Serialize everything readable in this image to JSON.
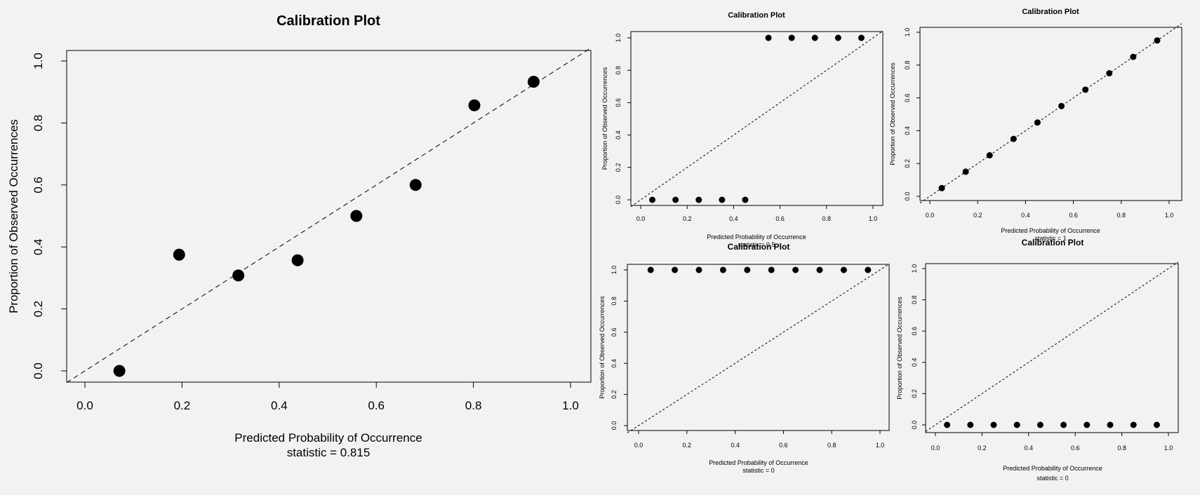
{
  "chart_data": [
    {
      "type": "scatter",
      "title": "Calibration Plot",
      "xlabel": "Predicted Probability of Occurrence",
      "ylabel": "Proportion of Observed Occurrences",
      "subtitle": "statistic = 0.815",
      "xlim": [
        0,
        1
      ],
      "ylim": [
        0,
        1
      ],
      "xticks": [
        "0.0",
        "0.2",
        "0.4",
        "0.6",
        "0.8",
        "1.0"
      ],
      "yticks": [
        "0.0",
        "0.2",
        "0.4",
        "0.6",
        "0.8",
        "1.0"
      ],
      "reference_line": "y = x (dashed)",
      "grid": false,
      "points": [
        {
          "x": 0.071,
          "y": 0.0
        },
        {
          "x": 0.194,
          "y": 0.375
        },
        {
          "x": 0.316,
          "y": 0.308
        },
        {
          "x": 0.438,
          "y": 0.357
        },
        {
          "x": 0.559,
          "y": 0.5
        },
        {
          "x": 0.681,
          "y": 0.6
        },
        {
          "x": 0.802,
          "y": 0.857
        },
        {
          "x": 0.924,
          "y": 0.933
        }
      ]
    },
    {
      "type": "scatter",
      "title": "Calibration Plot",
      "xlabel": "Predicted Probability of Occurrence",
      "ylabel": "Proportion of Observed Occurrences",
      "subtitle": "statistic = 0.5",
      "xlim": [
        0,
        1
      ],
      "ylim": [
        0,
        1
      ],
      "xticks": [
        "0.0",
        "0.2",
        "0.4",
        "0.6",
        "0.8",
        "1.0"
      ],
      "yticks": [
        "0.0",
        "0.2",
        "0.4",
        "0.6",
        "0.8",
        "1.0"
      ],
      "reference_line": "y = x (dashed)",
      "grid": false,
      "points": [
        {
          "x": 0.05,
          "y": 0
        },
        {
          "x": 0.15,
          "y": 0
        },
        {
          "x": 0.25,
          "y": 0
        },
        {
          "x": 0.35,
          "y": 0
        },
        {
          "x": 0.45,
          "y": 0
        },
        {
          "x": 0.55,
          "y": 1
        },
        {
          "x": 0.65,
          "y": 1
        },
        {
          "x": 0.75,
          "y": 1
        },
        {
          "x": 0.85,
          "y": 1
        },
        {
          "x": 0.95,
          "y": 1
        }
      ]
    },
    {
      "type": "scatter",
      "title": "Calibration Plot",
      "xlabel": "Predicted Probability of Occurrence",
      "ylabel": "Proportion of Observed Occurrences",
      "subtitle": "statistic = 1",
      "xlim": [
        0,
        1
      ],
      "ylim": [
        0,
        1
      ],
      "xticks": [
        "0.0",
        "0.2",
        "0.4",
        "0.6",
        "0.8",
        "1.0"
      ],
      "yticks": [
        "0.0",
        "0.2",
        "0.4",
        "0.6",
        "0.8",
        "1.0"
      ],
      "reference_line": "y = x (dashed)",
      "grid": false,
      "points": [
        {
          "x": 0.05,
          "y": 0.05
        },
        {
          "x": 0.15,
          "y": 0.15
        },
        {
          "x": 0.25,
          "y": 0.25
        },
        {
          "x": 0.35,
          "y": 0.35
        },
        {
          "x": 0.45,
          "y": 0.45
        },
        {
          "x": 0.55,
          "y": 0.55
        },
        {
          "x": 0.65,
          "y": 0.65
        },
        {
          "x": 0.75,
          "y": 0.75
        },
        {
          "x": 0.85,
          "y": 0.85
        },
        {
          "x": 0.95,
          "y": 0.95
        }
      ]
    },
    {
      "type": "scatter",
      "title": "Calibration Plot",
      "xlabel": "Predicted Probability of Occurrence",
      "ylabel": "Proportion of Observed Occurrences",
      "subtitle": "statistic = 0",
      "xlim": [
        0,
        1
      ],
      "ylim": [
        0,
        1
      ],
      "xticks": [
        "0.0",
        "0.2",
        "0.4",
        "0.6",
        "0.8",
        "1.0"
      ],
      "yticks": [
        "0.0",
        "0.2",
        "0.4",
        "0.6",
        "0.8",
        "1.0"
      ],
      "reference_line": "y = x (dashed)",
      "grid": false,
      "points": [
        {
          "x": 0.05,
          "y": 1
        },
        {
          "x": 0.15,
          "y": 1
        },
        {
          "x": 0.25,
          "y": 1
        },
        {
          "x": 0.35,
          "y": 1
        },
        {
          "x": 0.45,
          "y": 1
        },
        {
          "x": 0.55,
          "y": 1
        },
        {
          "x": 0.65,
          "y": 1
        },
        {
          "x": 0.75,
          "y": 1
        },
        {
          "x": 0.85,
          "y": 1
        },
        {
          "x": 0.95,
          "y": 1
        }
      ]
    },
    {
      "type": "scatter",
      "title": "Calibration Plot",
      "xlabel": "Predicted Probability of Occurrence",
      "ylabel": "Proportion of Observed Occurrences",
      "subtitle": "statistic = 0",
      "xlim": [
        0,
        1
      ],
      "ylim": [
        0,
        1
      ],
      "xticks": [
        "0.0",
        "0.2",
        "0.4",
        "0.6",
        "0.8",
        "1.0"
      ],
      "yticks": [
        "0.0",
        "0.2",
        "0.4",
        "0.6",
        "0.8",
        "1.0"
      ],
      "reference_line": "y = x (dashed)",
      "grid": false,
      "points": [
        {
          "x": 0.05,
          "y": 0
        },
        {
          "x": 0.15,
          "y": 0
        },
        {
          "x": 0.25,
          "y": 0
        },
        {
          "x": 0.35,
          "y": 0
        },
        {
          "x": 0.45,
          "y": 0
        },
        {
          "x": 0.55,
          "y": 0
        },
        {
          "x": 0.65,
          "y": 0
        },
        {
          "x": 0.75,
          "y": 0
        },
        {
          "x": 0.85,
          "y": 0
        },
        {
          "x": 0.95,
          "y": 0
        }
      ]
    }
  ]
}
